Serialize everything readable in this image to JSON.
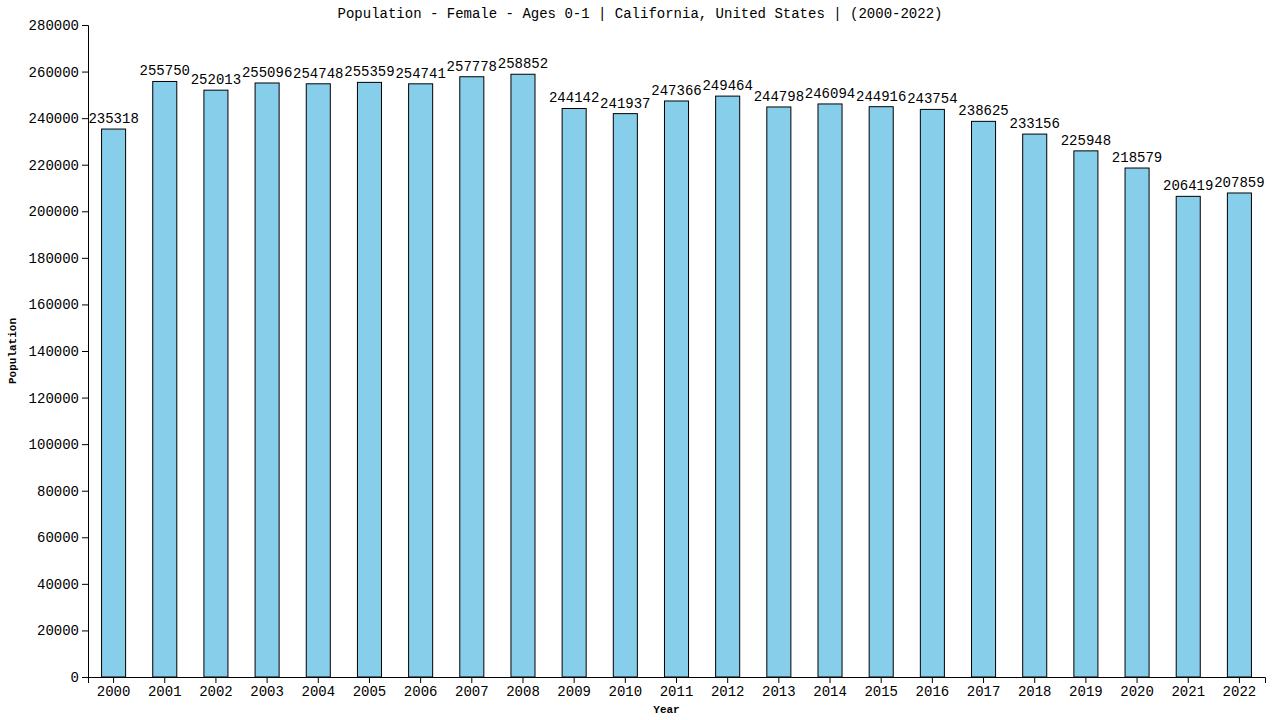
{
  "chart_data": {
    "type": "bar",
    "title": "Population - Female - Ages 0-1 | California, United States |  (2000-2022)",
    "x_label": "Year",
    "y_label": "Population",
    "categories": [
      "2000",
      "2001",
      "2002",
      "2003",
      "2004",
      "2005",
      "2006",
      "2007",
      "2008",
      "2009",
      "2010",
      "2011",
      "2012",
      "2013",
      "2014",
      "2015",
      "2016",
      "2017",
      "2018",
      "2019",
      "2020",
      "2021",
      "2022"
    ],
    "values": [
      235318,
      255750,
      252013,
      255096,
      254748,
      255359,
      254741,
      257778,
      258852,
      244142,
      241937,
      247366,
      249464,
      244798,
      246094,
      244916,
      243754,
      238625,
      233156,
      225948,
      218579,
      206419,
      207859
    ],
    "color": "#87ceeb",
    "ylim": [
      0,
      280000
    ],
    "yticks": [
      0,
      20000,
      40000,
      60000,
      80000,
      100000,
      120000,
      140000,
      160000,
      180000,
      200000,
      220000,
      240000,
      260000,
      280000
    ],
    "grid": false,
    "data_labels": true
  }
}
